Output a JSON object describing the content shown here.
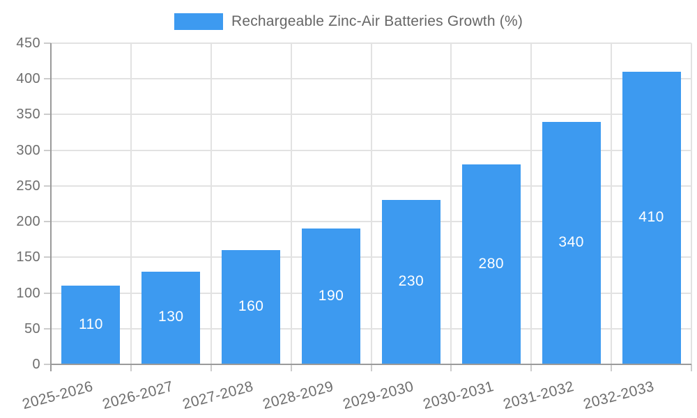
{
  "chart_data": {
    "type": "bar",
    "title": "Rechargeable Zinc-Air Batteries Growth (%)",
    "legend_entries": [
      "Rechargeable Zinc-Air Batteries Growth (%)"
    ],
    "legend_position": "top-center",
    "categories": [
      "2025-2026",
      "2026-2027",
      "2027-2028",
      "2028-2029",
      "2029-2030",
      "2030-2031",
      "2031-2032",
      "2032-2033"
    ],
    "values": [
      110,
      130,
      160,
      190,
      230,
      280,
      340,
      410
    ],
    "bar_value_labels": [
      "110",
      "130",
      "160",
      "190",
      "230",
      "280",
      "340",
      "410"
    ],
    "xlabel": "",
    "ylabel": "",
    "ylim": [
      0,
      450
    ],
    "ytick_step": 50,
    "yticks": [
      0,
      50,
      100,
      150,
      200,
      250,
      300,
      350,
      400,
      450
    ],
    "grid": true,
    "x_label_rotation_deg": -15,
    "colors": {
      "bar": "#3d9af0",
      "bar_label": "#ffffff",
      "axis_line": "#9a9a9a",
      "gridline": "#e2e2e2",
      "tick": "#cccccc",
      "axis_text": "#6e6e6e",
      "legend_text": "#666666",
      "background": "#ffffff"
    }
  }
}
